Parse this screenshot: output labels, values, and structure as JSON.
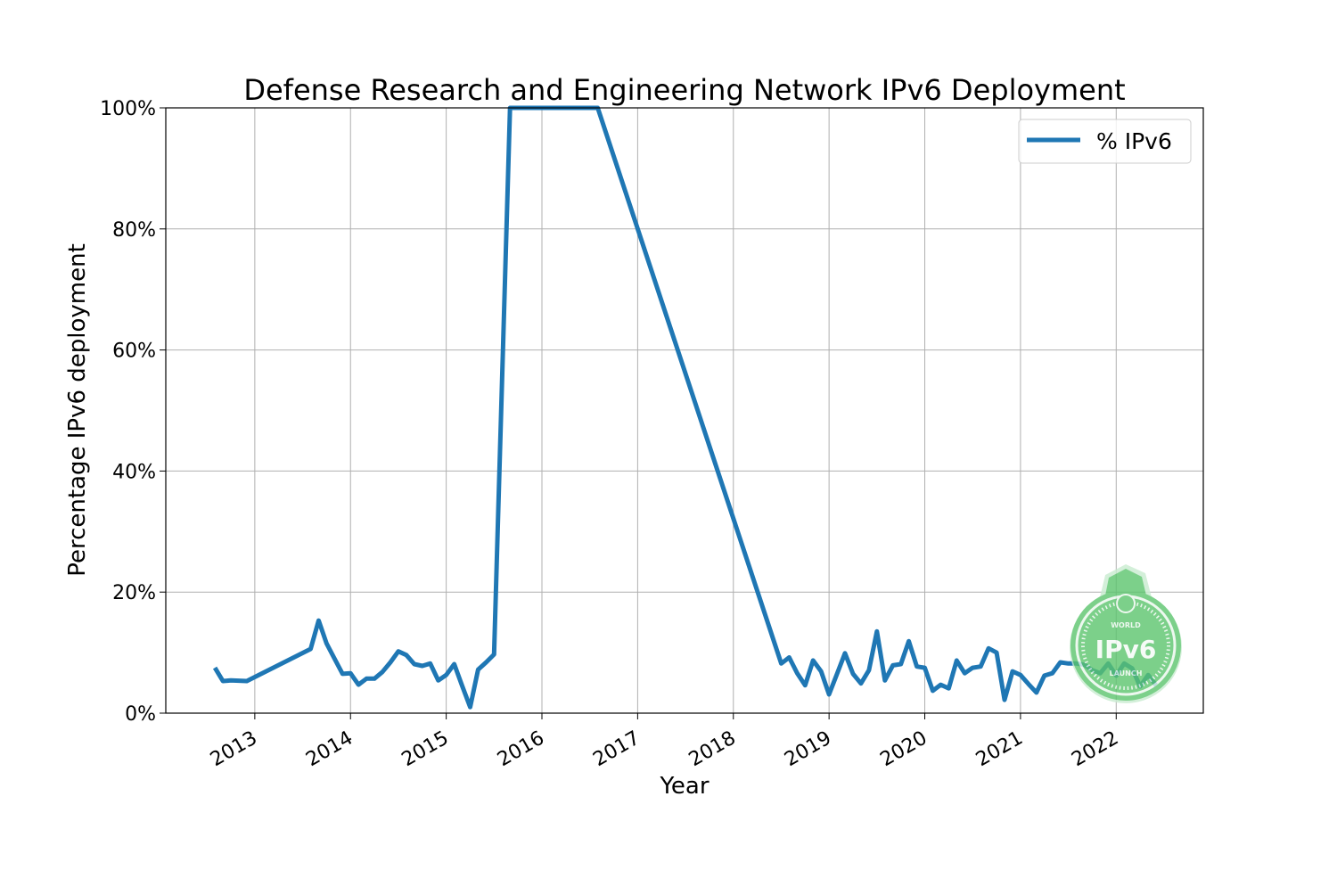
{
  "chart_data": {
    "type": "line",
    "title": "Defense Research and Engineering Network IPv6 Deployment",
    "xlabel": "Year",
    "ylabel": "Percentage IPv6 deployment",
    "xlim": [
      "2012-02",
      "2022-12"
    ],
    "ylim": [
      0,
      100
    ],
    "x_ticks": [
      "2013",
      "2014",
      "2015",
      "2016",
      "2017",
      "2018",
      "2019",
      "2020",
      "2021",
      "2022"
    ],
    "y_ticks": [
      0,
      20,
      40,
      60,
      80,
      100
    ],
    "y_tick_labels": [
      "0%",
      "20%",
      "40%",
      "60%",
      "80%",
      "100%"
    ],
    "grid": true,
    "legend": {
      "position": "top-right",
      "entries": [
        "% IPv6"
      ]
    },
    "series": [
      {
        "name": "% IPv6",
        "color": "#1f77b4",
        "points": [
          [
            "2012-08",
            7.5
          ],
          [
            "2012-09",
            5.3
          ],
          [
            "2012-10",
            5.4
          ],
          [
            "2012-12",
            5.3
          ],
          [
            "2013-08",
            10.6
          ],
          [
            "2013-09",
            15.3
          ],
          [
            "2013-10",
            11.5
          ],
          [
            "2013-11",
            9.0
          ],
          [
            "2013-12",
            6.5
          ],
          [
            "2014-01",
            6.6
          ],
          [
            "2014-02",
            4.7
          ],
          [
            "2014-03",
            5.7
          ],
          [
            "2014-04",
            5.7
          ],
          [
            "2014-05",
            6.8
          ],
          [
            "2014-06",
            8.4
          ],
          [
            "2014-07",
            10.2
          ],
          [
            "2014-08",
            9.6
          ],
          [
            "2014-09",
            8.1
          ],
          [
            "2014-10",
            7.8
          ],
          [
            "2014-11",
            8.2
          ],
          [
            "2014-12",
            5.4
          ],
          [
            "2015-01",
            6.3
          ],
          [
            "2015-02",
            8.1
          ],
          [
            "2015-03",
            4.5
          ],
          [
            "2015-04",
            1.0
          ],
          [
            "2015-05",
            7.2
          ],
          [
            "2015-06",
            8.4
          ],
          [
            "2015-07",
            9.7
          ],
          [
            "2015-09",
            100
          ],
          [
            "2016-08",
            100
          ],
          [
            "2018-07",
            8.2
          ],
          [
            "2018-08",
            9.2
          ],
          [
            "2018-09",
            6.6
          ],
          [
            "2018-10",
            4.6
          ],
          [
            "2018-11",
            8.7
          ],
          [
            "2018-12",
            6.9
          ],
          [
            "2019-01",
            3.1
          ],
          [
            "2019-02",
            6.5
          ],
          [
            "2019-03",
            9.9
          ],
          [
            "2019-04",
            6.5
          ],
          [
            "2019-05",
            4.9
          ],
          [
            "2019-06",
            7.1
          ],
          [
            "2019-07",
            13.5
          ],
          [
            "2019-08",
            5.4
          ],
          [
            "2019-09",
            7.9
          ],
          [
            "2019-10",
            8.1
          ],
          [
            "2019-11",
            11.9
          ],
          [
            "2019-12",
            7.7
          ],
          [
            "2020-01",
            7.5
          ],
          [
            "2020-02",
            3.7
          ],
          [
            "2020-03",
            4.7
          ],
          [
            "2020-04",
            4.1
          ],
          [
            "2020-05",
            8.7
          ],
          [
            "2020-06",
            6.6
          ],
          [
            "2020-07",
            7.5
          ],
          [
            "2020-08",
            7.7
          ],
          [
            "2020-09",
            10.7
          ],
          [
            "2020-10",
            10.0
          ],
          [
            "2020-11",
            2.2
          ],
          [
            "2020-12",
            6.9
          ],
          [
            "2021-01",
            6.3
          ],
          [
            "2021-02",
            4.8
          ],
          [
            "2021-03",
            3.4
          ],
          [
            "2021-04",
            6.2
          ],
          [
            "2021-05",
            6.6
          ],
          [
            "2021-06",
            8.4
          ],
          [
            "2021-07",
            8.2
          ],
          [
            "2021-08",
            8.2
          ],
          [
            "2021-09",
            8.0
          ],
          [
            "2021-10",
            7.1
          ],
          [
            "2021-11",
            6.6
          ],
          [
            "2021-12",
            8.2
          ],
          [
            "2022-01",
            6.2
          ],
          [
            "2022-02",
            8.2
          ],
          [
            "2022-03",
            7.4
          ],
          [
            "2022-04",
            4.4
          ],
          [
            "2022-05",
            6.3
          ],
          [
            "2022-06",
            4.6
          ]
        ]
      }
    ]
  },
  "logo": {
    "top": "WORLD",
    "main": "IPv6",
    "bottom": "LAUNCH",
    "color": "#5cc56e"
  }
}
